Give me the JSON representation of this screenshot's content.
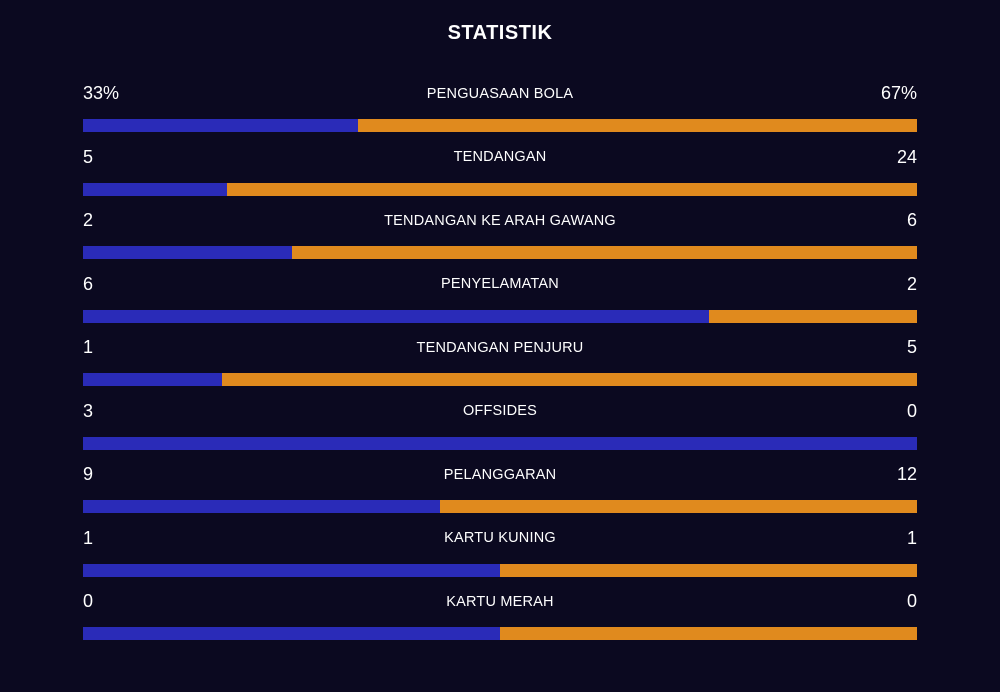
{
  "title": "STATISTIK",
  "colors": {
    "background": "#0b0920",
    "home": "#2a2bb8",
    "away": "#e08a1e"
  },
  "stats": [
    {
      "label": "PENGUASAAN BOLA",
      "home": "33%",
      "away": "67%",
      "home_val": 33,
      "away_val": 67
    },
    {
      "label": "TENDANGAN",
      "home": "5",
      "away": "24",
      "home_val": 5,
      "away_val": 24
    },
    {
      "label": "TENDANGAN KE ARAH GAWANG",
      "home": "2",
      "away": "6",
      "home_val": 2,
      "away_val": 6
    },
    {
      "label": "PENYELAMATAN",
      "home": "6",
      "away": "2",
      "home_val": 6,
      "away_val": 2
    },
    {
      "label": "TENDANGAN PENJURU",
      "home": "1",
      "away": "5",
      "home_val": 1,
      "away_val": 5
    },
    {
      "label": "OFFSIDES",
      "home": "3",
      "away": "0",
      "home_val": 3,
      "away_val": 0
    },
    {
      "label": "PELANGGARAN",
      "home": "9",
      "away": "12",
      "home_val": 9,
      "away_val": 12
    },
    {
      "label": "KARTU KUNING",
      "home": "1",
      "away": "1",
      "home_val": 1,
      "away_val": 1
    },
    {
      "label": "KARTU MERAH",
      "home": "0",
      "away": "0",
      "home_val": 0,
      "away_val": 0
    }
  ]
}
